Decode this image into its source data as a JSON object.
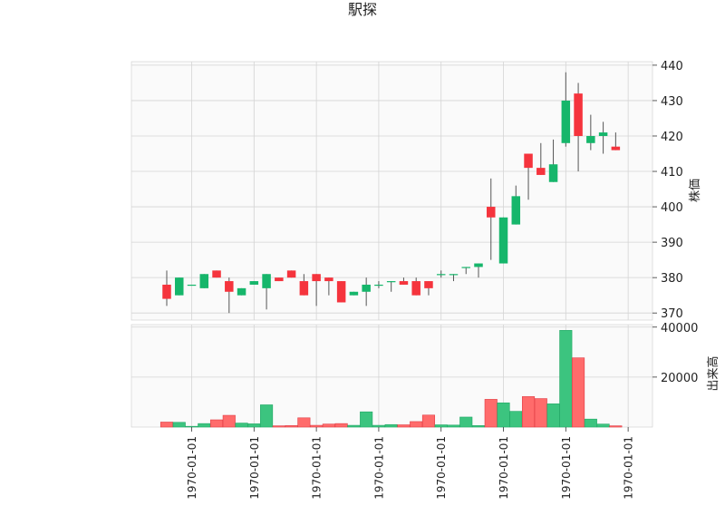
{
  "chart_data": {
    "type": "candlestick",
    "title": "駅探",
    "price_ylabel": "株価",
    "volume_ylabel": "出来高",
    "price_ylim": [
      368,
      441
    ],
    "price_yticks": [
      370,
      380,
      390,
      400,
      410,
      420,
      430,
      440
    ],
    "volume_ylim": [
      0,
      41000
    ],
    "volume_yticks": [
      20000,
      40000
    ],
    "xtick_labels": [
      "1970-01-01",
      "1970-01-01",
      "1970-01-01",
      "1970-01-01",
      "1970-01-01",
      "1970-01-01",
      "1970-01-01",
      "1970-01-01"
    ],
    "xtick_index": [
      2,
      7,
      12,
      17,
      22,
      27,
      32,
      37
    ],
    "grid": true,
    "up_color": "#16b66b",
    "down_color": "#f5343d",
    "candles": [
      {
        "open": 378,
        "high": 382,
        "low": 372,
        "close": 374
      },
      {
        "open": 375,
        "high": 380,
        "low": 375,
        "close": 380
      },
      {
        "open": 378,
        "high": 378,
        "low": 378,
        "close": 378
      },
      {
        "open": 377,
        "high": 381,
        "low": 377,
        "close": 381
      },
      {
        "open": 382,
        "high": 382,
        "low": 380,
        "close": 380
      },
      {
        "open": 379,
        "high": 380,
        "low": 370,
        "close": 376
      },
      {
        "open": 375,
        "high": 377,
        "low": 375,
        "close": 377
      },
      {
        "open": 378,
        "high": 379,
        "low": 378,
        "close": 379
      },
      {
        "open": 377,
        "high": 381,
        "low": 371,
        "close": 381
      },
      {
        "open": 380,
        "high": 380,
        "low": 379,
        "close": 379
      },
      {
        "open": 382,
        "high": 382,
        "low": 380,
        "close": 380
      },
      {
        "open": 379,
        "high": 381,
        "low": 375,
        "close": 375
      },
      {
        "open": 381,
        "high": 381,
        "low": 372,
        "close": 379
      },
      {
        "open": 380,
        "high": 380,
        "low": 375,
        "close": 379
      },
      {
        "open": 379,
        "high": 379,
        "low": 373,
        "close": 373
      },
      {
        "open": 375,
        "high": 376,
        "low": 375,
        "close": 376
      },
      {
        "open": 376,
        "high": 380,
        "low": 372,
        "close": 378
      },
      {
        "open": 378,
        "high": 379,
        "low": 377,
        "close": 378
      },
      {
        "open": 379,
        "high": 379,
        "low": 376,
        "close": 379
      },
      {
        "open": 379,
        "high": 380,
        "low": 378,
        "close": 378
      },
      {
        "open": 379,
        "high": 380,
        "low": 375,
        "close": 375
      },
      {
        "open": 379,
        "high": 379,
        "low": 375,
        "close": 377
      },
      {
        "open": 381,
        "high": 382,
        "low": 380,
        "close": 381
      },
      {
        "open": 381,
        "high": 381,
        "low": 379,
        "close": 381
      },
      {
        "open": 383,
        "high": 383,
        "low": 381,
        "close": 383
      },
      {
        "open": 383,
        "high": 384,
        "low": 380,
        "close": 384
      },
      {
        "open": 400,
        "high": 408,
        "low": 385,
        "close": 397
      },
      {
        "open": 384,
        "high": 397,
        "low": 384,
        "close": 397
      },
      {
        "open": 395,
        "high": 406,
        "low": 395,
        "close": 403
      },
      {
        "open": 415,
        "high": 415,
        "low": 402,
        "close": 411
      },
      {
        "open": 411,
        "high": 418,
        "low": 409,
        "close": 409
      },
      {
        "open": 407,
        "high": 419,
        "low": 407,
        "close": 412
      },
      {
        "open": 418,
        "high": 438,
        "low": 417,
        "close": 430
      },
      {
        "open": 432,
        "high": 435,
        "low": 410,
        "close": 420
      },
      {
        "open": 418,
        "high": 426,
        "low": 416,
        "close": 420
      },
      {
        "open": 420,
        "high": 424,
        "low": 415,
        "close": 421
      },
      {
        "open": 417,
        "high": 421,
        "low": 416,
        "close": 416
      }
    ],
    "volume": [
      2000,
      1900,
      300,
      1400,
      2900,
      4700,
      1600,
      1300,
      8900,
      500,
      600,
      3700,
      700,
      1200,
      1400,
      700,
      6100,
      700,
      1000,
      900,
      2200,
      4800,
      900,
      800,
      4000,
      600,
      11100,
      9700,
      6300,
      12200,
      11400,
      9300,
      38700,
      27700,
      3200,
      1200,
      500
    ]
  }
}
